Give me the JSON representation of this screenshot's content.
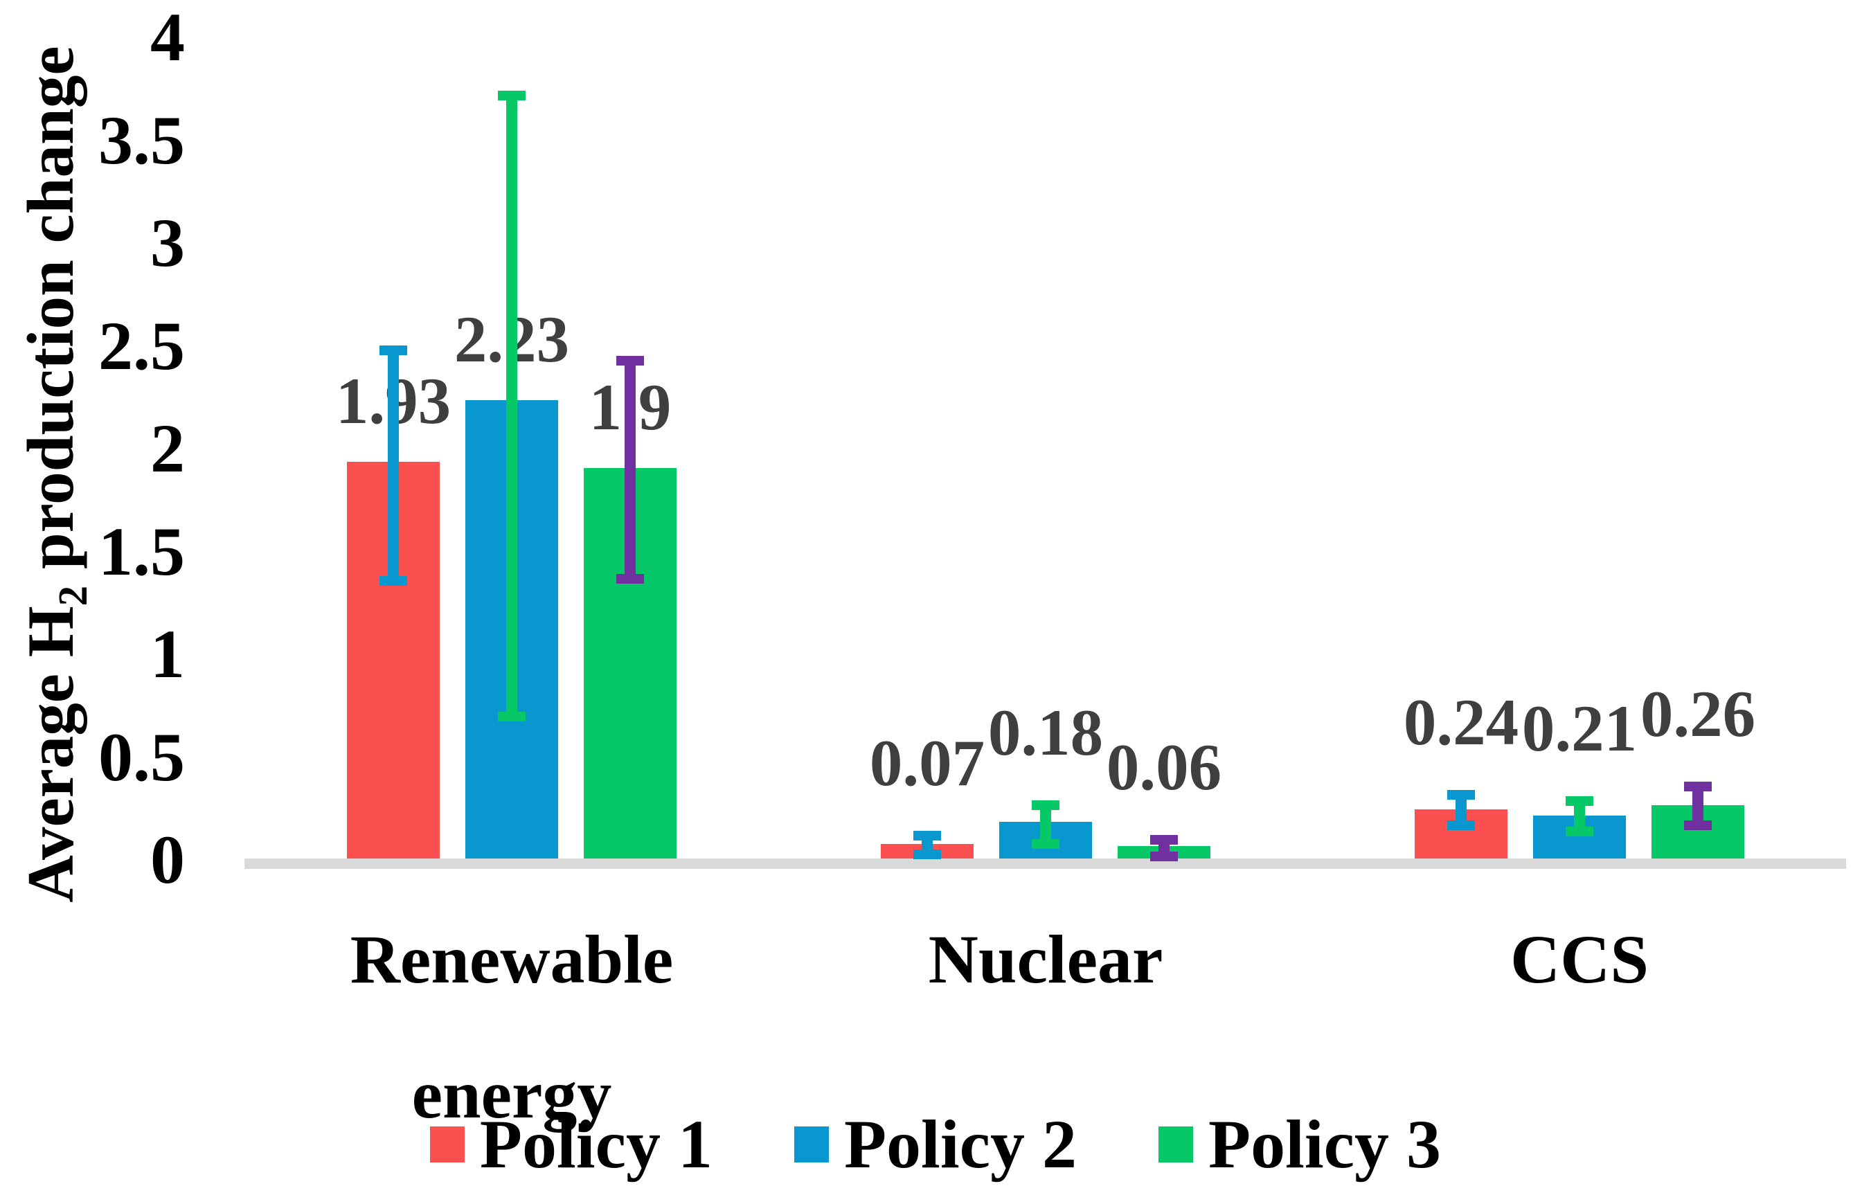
{
  "chart_data": {
    "type": "bar",
    "title": "",
    "ylabel": "Average H2 production change",
    "ylabel_prefix": "Average H",
    "ylabel_sub": "2",
    "ylabel_suffix": " production change",
    "xlabel": "",
    "categories": [
      "Renewable energy",
      "Nuclear",
      "CCS"
    ],
    "y_ticks": [
      "0",
      "0.5",
      "1",
      "1.5",
      "2",
      "2.5",
      "3",
      "3.5",
      "4"
    ],
    "ylim": [
      0,
      4
    ],
    "grid": false,
    "legend_position": "bottom",
    "axis_line_color": "#D9D9D9",
    "value_label_color": "#3F3F3F",
    "series": [
      {
        "name": "Policy 1",
        "color": "#FC4F4F",
        "error_bar_color": "#0897CF",
        "values": [
          1.93,
          0.07,
          0.24
        ],
        "labels": [
          "1.93",
          "0.07",
          "0.24"
        ],
        "error_low": [
          1.35,
          0.02,
          0.16
        ],
        "error_high": [
          2.47,
          0.11,
          0.31
        ]
      },
      {
        "name": "Policy 2",
        "color": "#0897CF",
        "error_bar_color": "#07C867",
        "values": [
          2.23,
          0.18,
          0.21
        ],
        "labels": [
          "2.23",
          "0.18",
          "0.21"
        ],
        "error_low": [
          0.69,
          0.07,
          0.13
        ],
        "error_high": [
          3.71,
          0.26,
          0.28
        ]
      },
      {
        "name": "Policy 3",
        "color": "#07C867",
        "error_bar_color": "#7030A0",
        "values": [
          1.9,
          0.06,
          0.26
        ],
        "labels": [
          "1.9",
          "0.06",
          "0.26"
        ],
        "error_low": [
          1.36,
          0.01,
          0.16
        ],
        "error_high": [
          2.42,
          0.09,
          0.35
        ]
      }
    ]
  }
}
